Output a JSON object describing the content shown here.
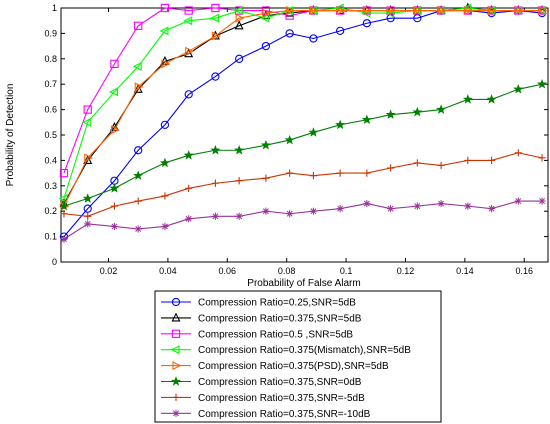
{
  "chart_data": {
    "type": "line",
    "title": "",
    "xlabel": "Probability of False Alarm",
    "ylabel": "Probability of Detection",
    "xlim": [
      0.004,
      0.168
    ],
    "ylim": [
      0,
      1
    ],
    "x_ticks": [
      0.02,
      0.04,
      0.06,
      0.08,
      0.1,
      0.12,
      0.14,
      0.16
    ],
    "x_tick_labels": [
      "0.02",
      "0.04",
      "0.06",
      "0.08",
      "0.1",
      "0.12",
      "0.14",
      "0.16"
    ],
    "y_ticks": [
      0,
      0.1,
      0.2,
      0.3,
      0.4,
      0.5,
      0.6,
      0.7,
      0.8,
      0.9,
      1
    ],
    "y_tick_labels": [
      "0",
      "0.1",
      "0.2",
      "0.3",
      "0.4",
      "0.5",
      "0.6",
      "0.7",
      "0.8",
      "0.9",
      "1"
    ],
    "grid": false,
    "legend_position": "below",
    "x": [
      0.005,
      0.013,
      0.022,
      0.03,
      0.039,
      0.047,
      0.056,
      0.064,
      0.073,
      0.081,
      0.089,
      0.098,
      0.107,
      0.115,
      0.124,
      0.132,
      0.141,
      0.149,
      0.158,
      0.166
    ],
    "series": [
      {
        "name": "Compression Ratio=0.25,SNR=5dB",
        "color": "#0000ff",
        "marker": "circle",
        "values": [
          0.1,
          0.21,
          0.32,
          0.44,
          0.54,
          0.66,
          0.73,
          0.8,
          0.85,
          0.9,
          0.88,
          0.91,
          0.94,
          0.96,
          0.96,
          0.99,
          0.99,
          0.98,
          0.99,
          0.98
        ]
      },
      {
        "name": "Compression Ratio=0.375,SNR=5dB",
        "color": "#000000",
        "marker": "triangle",
        "values": [
          0.23,
          0.4,
          0.53,
          0.68,
          0.79,
          0.82,
          0.89,
          0.93,
          0.97,
          0.98,
          0.99,
          0.99,
          0.99,
          0.99,
          0.99,
          0.99,
          1.0,
          0.99,
          0.99,
          0.99
        ]
      },
      {
        "name": "Compression Ratio=0.5 ,SNR=5dB",
        "color": "#ff00ff",
        "marker": "square",
        "values": [
          0.35,
          0.6,
          0.78,
          0.93,
          1.0,
          0.99,
          1.0,
          0.99,
          0.99,
          0.97,
          0.99,
          0.99,
          0.99,
          0.99,
          0.99,
          0.99,
          0.99,
          0.99,
          0.99,
          0.99
        ]
      },
      {
        "name": "Compression Ratio=0.375(Mismatch),SNR=5dB",
        "color": "#00ff00",
        "marker": "triangle-left",
        "values": [
          0.25,
          0.55,
          0.67,
          0.77,
          0.91,
          0.95,
          0.96,
          0.99,
          0.96,
          0.99,
          0.99,
          1.0,
          0.98,
          0.98,
          0.99,
          0.99,
          1.0,
          0.99,
          0.99,
          0.99
        ]
      },
      {
        "name": "Compression Ratio=0.375(PSD),SNR=5dB",
        "color": "#ff6600",
        "marker": "triangle-right",
        "values": [
          0.22,
          0.41,
          0.52,
          0.69,
          0.78,
          0.83,
          0.89,
          0.96,
          0.98,
          0.99,
          0.99,
          0.99,
          0.99,
          0.99,
          0.99,
          0.99,
          0.99,
          0.99,
          0.99,
          0.99
        ]
      },
      {
        "name": "Compression Ratio=0.375,SNR=0dB",
        "color": "#008000",
        "marker": "star",
        "values": [
          0.22,
          0.25,
          0.29,
          0.34,
          0.39,
          0.42,
          0.44,
          0.44,
          0.46,
          0.48,
          0.51,
          0.54,
          0.56,
          0.58,
          0.59,
          0.6,
          0.64,
          0.64,
          0.68,
          0.7
        ]
      },
      {
        "name": "Compression Ratio=0.375,SNR=-5dB",
        "color": "#cc3300",
        "marker": "plus",
        "values": [
          0.19,
          0.18,
          0.22,
          0.24,
          0.26,
          0.29,
          0.31,
          0.32,
          0.33,
          0.35,
          0.34,
          0.35,
          0.35,
          0.37,
          0.39,
          0.38,
          0.4,
          0.4,
          0.43,
          0.41
        ]
      },
      {
        "name": "Compression Ratio=0.375,SNR=-10dB",
        "color": "#993399",
        "marker": "asterisk",
        "values": [
          0.09,
          0.15,
          0.14,
          0.13,
          0.14,
          0.17,
          0.18,
          0.18,
          0.2,
          0.19,
          0.2,
          0.21,
          0.23,
          0.21,
          0.22,
          0.23,
          0.22,
          0.21,
          0.24,
          0.24
        ]
      }
    ]
  }
}
